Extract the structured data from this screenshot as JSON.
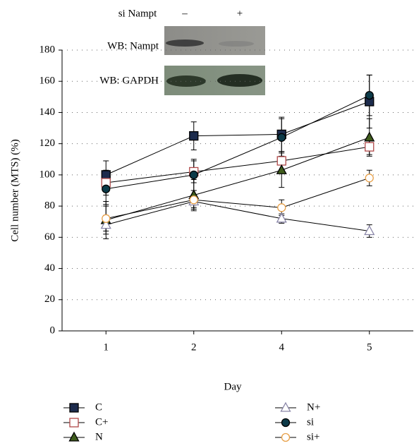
{
  "chart_data": {
    "type": "line",
    "inset": {
      "header": "si Nampt",
      "lanes": [
        "–",
        "+"
      ],
      "rows": [
        "WB: Nampt",
        "WB: GAPDH"
      ]
    },
    "xlabel": "Day",
    "ylabel": "Cell number (MTS) (%)",
    "categories": [
      "1",
      "2",
      "4",
      "5"
    ],
    "ylim": [
      0,
      180
    ],
    "yticks": [
      0,
      20,
      40,
      60,
      80,
      100,
      120,
      140,
      160,
      180
    ],
    "grid": true,
    "series": [
      {
        "name": "C",
        "marker": "square",
        "color": "#000000",
        "fill": "#1c2b4c",
        "values": [
          100,
          125,
          126,
          147
        ],
        "errors": [
          9,
          9,
          11,
          17
        ]
      },
      {
        "name": "C+",
        "marker": "square",
        "color": "#b04848",
        "fill": "#ffffff",
        "values": [
          95,
          102,
          109,
          118
        ],
        "errors": [
          8,
          7,
          6,
          5
        ]
      },
      {
        "name": "N",
        "marker": "triangle",
        "color": "#000000",
        "fill": "#3f5c1c",
        "values": [
          71,
          87,
          103,
          124
        ],
        "errors": [
          12,
          10,
          11,
          12
        ]
      },
      {
        "name": "N+",
        "marker": "triangle",
        "color": "#8a86a8",
        "fill": "#ffffff",
        "values": [
          68,
          83,
          72,
          64
        ],
        "errors": [
          6,
          4,
          3,
          4
        ]
      },
      {
        "name": "si",
        "marker": "circle",
        "color": "#000000",
        "fill": "#0c3a48",
        "values": [
          91,
          100,
          124,
          151
        ],
        "errors": [
          10,
          10,
          12,
          13
        ]
      },
      {
        "name": "si+",
        "marker": "circle",
        "color": "#e8a048",
        "fill": "#ffffff",
        "values": [
          72,
          84,
          79,
          98
        ],
        "errors": [
          8,
          6,
          5,
          5
        ]
      }
    ]
  }
}
